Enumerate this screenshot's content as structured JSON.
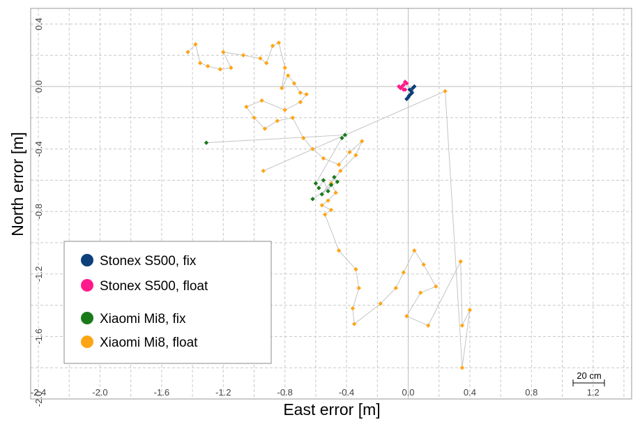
{
  "chart_data": {
    "type": "scatter",
    "xlabel": "East error [m]",
    "ylabel": "North error [m]",
    "xlim": [
      -2.45,
      1.45
    ],
    "ylim": [
      -2.0,
      0.5
    ],
    "grid": true,
    "x_ticks": [
      "-2.4",
      "-2.0",
      "-1.6",
      "-1.2",
      "-0.8",
      "-0.4",
      "0.0",
      "0.4",
      "0.8",
      "1.2"
    ],
    "y_ticks": [
      "0.4",
      "0.0",
      "-0.4",
      "-0.8",
      "-1.2",
      "-1.6",
      "-2.0"
    ],
    "scale_bar_label": "20 cm",
    "legend_position": "bottom-left",
    "series": [
      {
        "name": "Stonex S500, fix",
        "color": "#0d3f7a",
        "points": [
          [
            0.01,
            -0.02
          ],
          [
            0.02,
            -0.03
          ],
          [
            0.03,
            -0.01
          ],
          [
            0.015,
            -0.05
          ],
          [
            0.0,
            -0.07
          ],
          [
            -0.01,
            -0.08
          ],
          [
            0.04,
            0.0
          ],
          [
            0.025,
            -0.04
          ],
          [
            0.005,
            -0.06
          ]
        ]
      },
      {
        "name": "Stonex S500, float",
        "color": "#ff1a8c",
        "points": [
          [
            -0.04,
            0.0
          ],
          [
            -0.03,
            0.01
          ],
          [
            -0.02,
            -0.02
          ],
          [
            -0.05,
            -0.01
          ],
          [
            -0.01,
            0.02
          ],
          [
            -0.03,
            -0.02
          ],
          [
            -0.06,
            0.0
          ],
          [
            -0.02,
            0.03
          ]
        ]
      },
      {
        "name": "Xiaomi Mi8, fix",
        "color": "#1a7a1a",
        "points": [
          [
            -1.31,
            -0.36
          ],
          [
            -0.41,
            -0.31
          ],
          [
            -0.43,
            -0.33
          ],
          [
            -0.6,
            -0.62
          ],
          [
            -0.58,
            -0.65
          ],
          [
            -0.55,
            -0.6
          ],
          [
            -0.52,
            -0.67
          ],
          [
            -0.5,
            -0.63
          ],
          [
            -0.56,
            -0.69
          ],
          [
            -0.48,
            -0.58
          ],
          [
            -0.46,
            -0.61
          ],
          [
            -0.62,
            -0.72
          ]
        ]
      },
      {
        "name": "Xiaomi Mi8, float",
        "color": "#ffa515",
        "points": [
          [
            -1.43,
            0.22
          ],
          [
            -1.38,
            0.27
          ],
          [
            -1.35,
            0.15
          ],
          [
            -1.3,
            0.13
          ],
          [
            -1.22,
            0.11
          ],
          [
            -1.15,
            0.12
          ],
          [
            -1.2,
            0.22
          ],
          [
            -1.07,
            0.2
          ],
          [
            -0.96,
            0.18
          ],
          [
            -0.92,
            0.15
          ],
          [
            -0.88,
            0.26
          ],
          [
            -0.84,
            0.28
          ],
          [
            -0.8,
            0.12
          ],
          [
            -0.82,
            -0.01
          ],
          [
            -0.78,
            0.07
          ],
          [
            -0.74,
            0.02
          ],
          [
            -0.7,
            -0.04
          ],
          [
            -0.66,
            -0.05
          ],
          [
            -0.7,
            -0.1
          ],
          [
            -0.8,
            -0.15
          ],
          [
            -0.95,
            -0.09
          ],
          [
            -1.05,
            -0.13
          ],
          [
            -1.0,
            -0.2
          ],
          [
            -0.93,
            -0.27
          ],
          [
            -0.85,
            -0.22
          ],
          [
            -0.75,
            -0.2
          ],
          [
            -0.68,
            -0.33
          ],
          [
            -0.62,
            -0.4
          ],
          [
            -0.55,
            -0.46
          ],
          [
            -0.45,
            -0.5
          ],
          [
            -0.38,
            -0.42
          ],
          [
            -0.3,
            -0.35
          ],
          [
            -0.34,
            -0.44
          ],
          [
            -0.44,
            -0.54
          ],
          [
            -0.5,
            -0.62
          ],
          [
            -0.47,
            -0.68
          ],
          [
            -0.52,
            -0.73
          ],
          [
            -0.56,
            -0.76
          ],
          [
            -0.5,
            -0.79
          ],
          [
            -0.54,
            -0.82
          ],
          [
            -0.45,
            -1.05
          ],
          [
            -0.34,
            -1.17
          ],
          [
            -0.32,
            -1.29
          ],
          [
            -0.36,
            -1.42
          ],
          [
            -0.35,
            -1.52
          ],
          [
            -0.18,
            -1.39
          ],
          [
            -0.08,
            -1.29
          ],
          [
            -0.03,
            -1.19
          ],
          [
            0.04,
            -1.05
          ],
          [
            0.1,
            -1.14
          ],
          [
            0.18,
            -1.28
          ],
          [
            0.08,
            -1.32
          ],
          [
            -0.01,
            -1.47
          ],
          [
            0.13,
            -1.53
          ],
          [
            0.34,
            -1.12
          ],
          [
            0.35,
            -1.53
          ],
          [
            0.4,
            -1.43
          ],
          [
            0.35,
            -1.8
          ],
          [
            0.24,
            -0.03
          ],
          [
            -0.94,
            -0.54
          ]
        ]
      }
    ]
  }
}
